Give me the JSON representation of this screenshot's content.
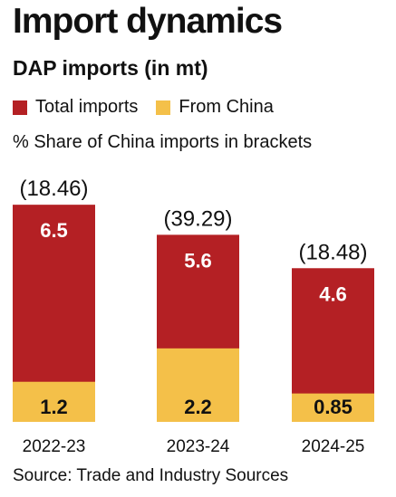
{
  "chart_data": {
    "type": "bar",
    "title": "Import dynamics",
    "subtitle": "DAP imports (in mt)",
    "note": "% Share of China imports in brackets",
    "source": "Source: Trade and Industry Sources",
    "categories": [
      "2022-23",
      "2023-24",
      "2024-25"
    ],
    "series": [
      {
        "name": "Total imports",
        "values": [
          6.5,
          5.6,
          4.6
        ],
        "labels": [
          "6.5",
          "5.6",
          "4.6"
        ],
        "color": "#B42024"
      },
      {
        "name": "From China",
        "values": [
          1.2,
          2.2,
          0.85
        ],
        "labels": [
          "1.2",
          "2.2",
          "0.85"
        ],
        "color": "#F4C049"
      }
    ],
    "share_labels": [
      "(18.46)",
      "(39.29)",
      "(18.48)"
    ],
    "legend_position": "top",
    "grid": false
  }
}
